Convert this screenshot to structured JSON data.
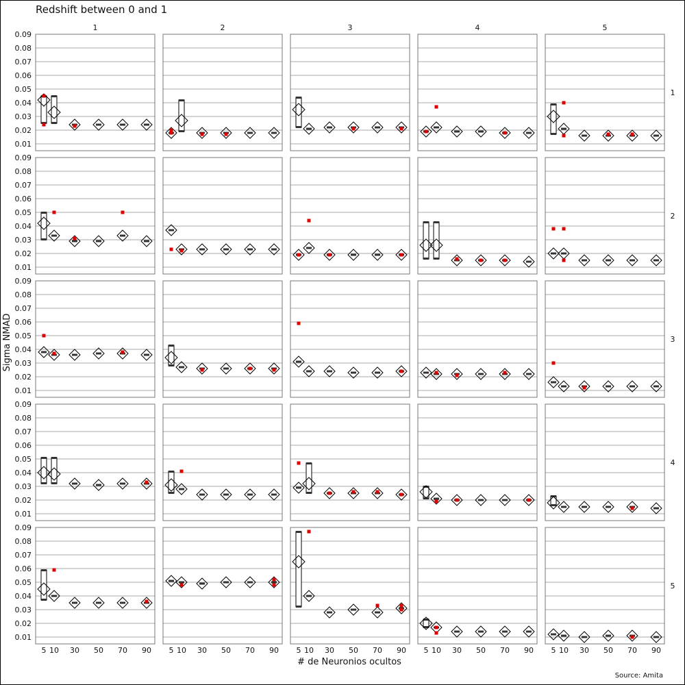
{
  "chart_data": {
    "type": "scatter",
    "title": "Redshift between 0 and 1",
    "xlabel": "# de Neuronios ocultos",
    "ylabel": "Sigma NMAD",
    "source": "Source: Amita",
    "col_labels": [
      "1",
      "2",
      "3",
      "4",
      "5"
    ],
    "row_labels": [
      "1",
      "2",
      "3",
      "4",
      "5"
    ],
    "x_ticks": [
      "5",
      "10",
      "30",
      "50",
      "70",
      "90"
    ],
    "y_ticks": [
      "0.01",
      "0.02",
      "0.03",
      "0.04",
      "0.05",
      "0.06",
      "0.07",
      "0.08",
      "0.09"
    ],
    "x": [
      5,
      10,
      30,
      50,
      70,
      90
    ],
    "ylim": [
      0.005,
      0.09
    ],
    "grid": true,
    "colors": {
      "outlier": "#dd0000",
      "box": "#000000",
      "grid": "#aaaaaa",
      "panel_border": "#777777"
    },
    "panels": [
      [
        {
          "mean": [
            0.042,
            0.033,
            0.024,
            0.024,
            0.024,
            0.024
          ],
          "box": [
            [
              0.025,
              0.045
            ],
            [
              0.025,
              0.045
            ],
            null,
            null,
            null,
            null
          ],
          "outliers": [
            [
              5,
              0.045
            ],
            [
              5,
              0.024
            ],
            [
              30,
              0.023
            ]
          ]
        },
        {
          "mean": [
            0.018,
            0.027,
            0.018,
            0.018,
            0.018,
            0.018
          ],
          "box": [
            null,
            [
              0.019,
              0.042
            ],
            null,
            null,
            null,
            null
          ],
          "outliers": [
            [
              5,
              0.018
            ],
            [
              5,
              0.02
            ],
            [
              30,
              0.017
            ],
            [
              50,
              0.017
            ]
          ]
        },
        {
          "mean": [
            0.035,
            0.021,
            0.022,
            0.022,
            0.022,
            0.022
          ],
          "box": [
            [
              0.022,
              0.044
            ],
            null,
            null,
            null,
            null,
            null
          ],
          "outliers": [
            [
              50,
              0.021
            ],
            [
              90,
              0.021
            ]
          ]
        },
        {
          "mean": [
            0.019,
            0.022,
            0.019,
            0.019,
            0.018,
            0.018
          ],
          "box": [
            null,
            null,
            null,
            null,
            null,
            null
          ],
          "outliers": [
            [
              10,
              0.037
            ],
            [
              5,
              0.019
            ],
            [
              70,
              0.018
            ]
          ]
        },
        {
          "mean": [
            0.03,
            0.021,
            0.016,
            0.016,
            0.016,
            0.016
          ],
          "box": [
            [
              0.017,
              0.039
            ],
            null,
            null,
            null,
            null,
            null
          ],
          "outliers": [
            [
              10,
              0.04
            ],
            [
              10,
              0.016
            ],
            [
              50,
              0.017
            ],
            [
              70,
              0.017
            ]
          ]
        }
      ],
      [
        {
          "mean": [
            0.042,
            0.033,
            0.029,
            0.029,
            0.033,
            0.029
          ],
          "box": [
            [
              0.03,
              0.05
            ],
            null,
            null,
            null,
            null,
            null
          ],
          "outliers": [
            [
              10,
              0.05
            ],
            [
              70,
              0.05
            ],
            [
              30,
              0.031
            ]
          ]
        },
        {
          "mean": [
            0.037,
            0.023,
            0.023,
            0.023,
            0.023,
            0.023
          ],
          "box": [
            null,
            null,
            null,
            null,
            null,
            null
          ],
          "outliers": [
            [
              5,
              0.023
            ],
            [
              10,
              0.022
            ]
          ]
        },
        {
          "mean": [
            0.019,
            0.024,
            0.019,
            0.019,
            0.019,
            0.019
          ],
          "box": [
            null,
            null,
            null,
            null,
            null,
            null
          ],
          "outliers": [
            [
              10,
              0.044
            ],
            [
              5,
              0.019
            ],
            [
              30,
              0.019
            ],
            [
              90,
              0.019
            ]
          ]
        },
        {
          "mean": [
            0.026,
            0.026,
            0.015,
            0.015,
            0.015,
            0.014
          ],
          "box": [
            [
              0.016,
              0.043
            ],
            [
              0.016,
              0.043
            ],
            null,
            null,
            null,
            null
          ],
          "outliers": [
            [
              30,
              0.016
            ],
            [
              50,
              0.015
            ],
            [
              70,
              0.015
            ]
          ]
        },
        {
          "mean": [
            0.02,
            0.02,
            0.015,
            0.015,
            0.015,
            0.015
          ],
          "box": [
            null,
            null,
            null,
            null,
            null,
            null
          ],
          "outliers": [
            [
              5,
              0.038
            ],
            [
              10,
              0.038
            ],
            [
              10,
              0.015
            ]
          ]
        }
      ],
      [
        {
          "mean": [
            0.038,
            0.036,
            0.036,
            0.037,
            0.037,
            0.036
          ],
          "box": [
            null,
            null,
            null,
            null,
            null,
            null
          ],
          "outliers": [
            [
              5,
              0.05
            ],
            [
              10,
              0.037
            ],
            [
              70,
              0.038
            ]
          ]
        },
        {
          "mean": [
            0.034,
            0.027,
            0.026,
            0.026,
            0.026,
            0.026
          ],
          "box": [
            [
              0.028,
              0.043
            ],
            null,
            null,
            null,
            null,
            null
          ],
          "outliers": [
            [
              30,
              0.025
            ],
            [
              70,
              0.026
            ],
            [
              90,
              0.025
            ]
          ]
        },
        {
          "mean": [
            0.031,
            0.024,
            0.024,
            0.023,
            0.023,
            0.024
          ],
          "box": [
            null,
            null,
            null,
            null,
            null,
            null
          ],
          "outliers": [
            [
              5,
              0.059
            ],
            [
              90,
              0.024
            ]
          ]
        },
        {
          "mean": [
            0.023,
            0.022,
            0.022,
            0.022,
            0.022,
            0.022
          ],
          "box": [
            null,
            null,
            null,
            null,
            null,
            null
          ],
          "outliers": [
            [
              10,
              0.023
            ],
            [
              30,
              0.021
            ],
            [
              70,
              0.023
            ]
          ]
        },
        {
          "mean": [
            0.016,
            0.013,
            0.013,
            0.013,
            0.013,
            0.013
          ],
          "box": [
            null,
            null,
            null,
            null,
            null,
            null
          ],
          "outliers": [
            [
              5,
              0.03
            ],
            [
              30,
              0.012
            ]
          ]
        }
      ],
      [
        {
          "mean": [
            0.04,
            0.039,
            0.032,
            0.031,
            0.032,
            0.032
          ],
          "box": [
            [
              0.032,
              0.051
            ],
            [
              0.032,
              0.051
            ],
            null,
            null,
            null,
            null
          ],
          "outliers": [
            [
              90,
              0.033
            ]
          ]
        },
        {
          "mean": [
            0.031,
            0.028,
            0.024,
            0.024,
            0.024,
            0.024
          ],
          "box": [
            [
              0.025,
              0.041
            ],
            null,
            null,
            null,
            null,
            null
          ],
          "outliers": [
            [
              10,
              0.041
            ]
          ]
        },
        {
          "mean": [
            0.029,
            0.032,
            0.025,
            0.025,
            0.025,
            0.024
          ],
          "box": [
            null,
            [
              0.025,
              0.047
            ],
            null,
            null,
            null,
            null
          ],
          "outliers": [
            [
              5,
              0.047
            ],
            [
              30,
              0.025
            ],
            [
              50,
              0.026
            ],
            [
              70,
              0.026
            ],
            [
              90,
              0.024
            ]
          ]
        },
        {
          "mean": [
            0.026,
            0.021,
            0.02,
            0.02,
            0.02,
            0.02
          ],
          "box": [
            [
              0.021,
              0.03
            ],
            null,
            null,
            null,
            null,
            null
          ],
          "outliers": [
            [
              10,
              0.019
            ],
            [
              30,
              0.02
            ],
            [
              90,
              0.02
            ]
          ]
        },
        {
          "mean": [
            0.018,
            0.015,
            0.015,
            0.015,
            0.015,
            0.014
          ],
          "box": [
            [
              0.016,
              0.023
            ],
            null,
            null,
            null,
            null,
            null
          ],
          "outliers": [
            [
              70,
              0.014
            ]
          ]
        }
      ],
      [
        {
          "mean": [
            0.045,
            0.04,
            0.035,
            0.035,
            0.035,
            0.035
          ],
          "box": [
            [
              0.037,
              0.059
            ],
            null,
            null,
            null,
            null,
            null
          ],
          "outliers": [
            [
              10,
              0.059
            ],
            [
              90,
              0.036
            ]
          ]
        },
        {
          "mean": [
            0.051,
            0.05,
            0.049,
            0.05,
            0.05,
            0.05
          ],
          "box": [
            null,
            null,
            null,
            null,
            null,
            null
          ],
          "outliers": [
            [
              10,
              0.048
            ],
            [
              90,
              0.048
            ],
            [
              90,
              0.052
            ]
          ]
        },
        {
          "mean": [
            0.065,
            0.04,
            0.028,
            0.03,
            0.028,
            0.031
          ],
          "box": [
            [
              0.032,
              0.087
            ],
            null,
            null,
            null,
            null,
            null
          ],
          "outliers": [
            [
              10,
              0.087
            ],
            [
              70,
              0.033
            ],
            [
              90,
              0.033
            ],
            [
              90,
              0.03
            ]
          ]
        },
        {
          "mean": [
            0.02,
            0.017,
            0.014,
            0.014,
            0.014,
            0.014
          ],
          "box": [
            [
              0.017,
              0.023
            ],
            null,
            null,
            null,
            null,
            null
          ],
          "outliers": [
            [
              10,
              0.017
            ],
            [
              10,
              0.013
            ]
          ]
        },
        {
          "mean": [
            0.012,
            0.011,
            0.01,
            0.011,
            0.011,
            0.01
          ],
          "box": [
            null,
            null,
            null,
            null,
            null,
            null
          ],
          "outliers": [
            [
              70,
              0.01
            ]
          ]
        }
      ]
    ]
  }
}
